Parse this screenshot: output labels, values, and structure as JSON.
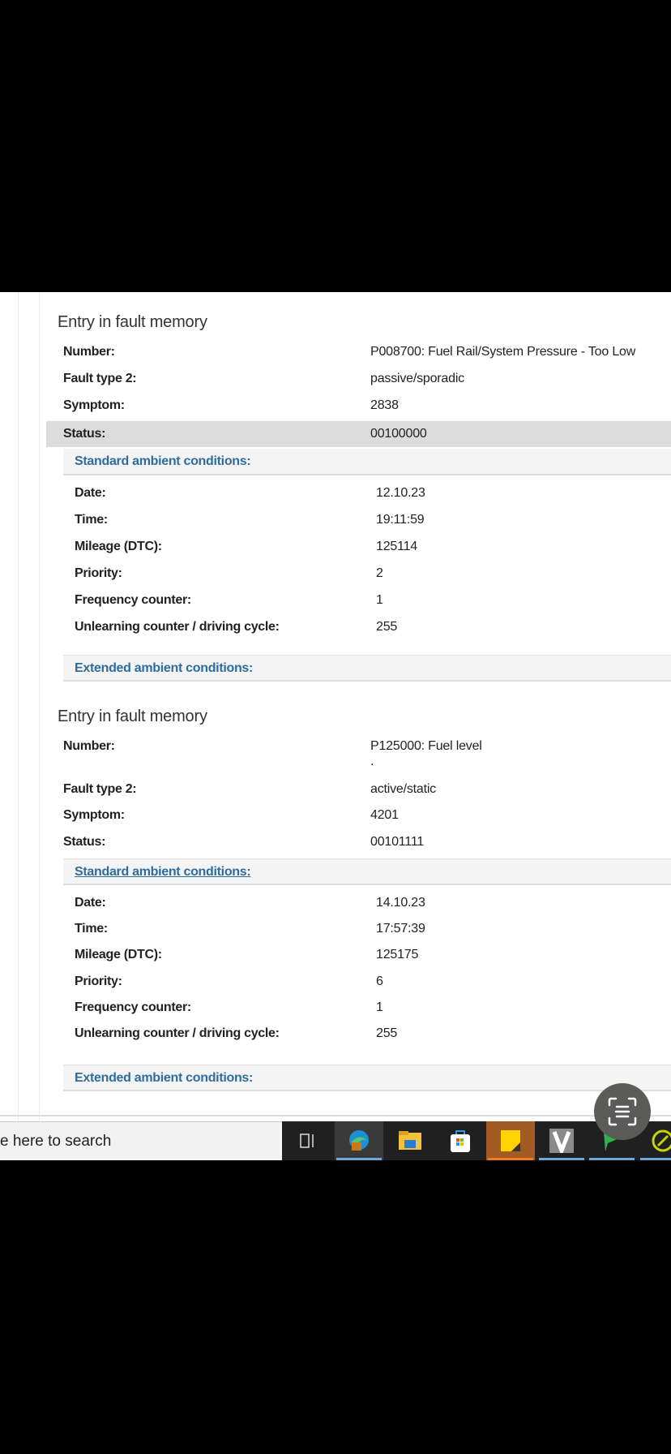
{
  "entries": [
    {
      "title": "Entry in fault memory",
      "number_label": "Number:",
      "number": "P008700:  Fuel Rail/System Pressure - Too Low",
      "fault_type_label": "Fault type 2:",
      "fault_type": "passive/sporadic",
      "symptom_label": "Symptom:",
      "symptom": "2838",
      "status_label": "Status:",
      "status": "00100000",
      "standard_label": "Standard ambient conditions:",
      "conditions": [
        {
          "label": "Date:",
          "value": "12.10.23"
        },
        {
          "label": "Time:",
          "value": "19:11:59"
        },
        {
          "label": "Mileage (DTC):",
          "value": "125114"
        },
        {
          "label": "Priority:",
          "value": "2"
        },
        {
          "label": "Frequency counter:",
          "value": "1"
        },
        {
          "label": "Unlearning counter / driving cycle:",
          "value": "255"
        }
      ],
      "extended_label": "Extended ambient conditions:"
    },
    {
      "title": "Entry in fault memory",
      "number_label": "Number:",
      "number": "P125000:  Fuel level",
      "number_extra": ".",
      "fault_type_label": "Fault type 2:",
      "fault_type": "active/static",
      "symptom_label": "Symptom:",
      "symptom": "4201",
      "status_label": "Status:",
      "status": "00101111",
      "standard_label": "Standard ambient conditions:",
      "conditions": [
        {
          "label": "Date:",
          "value": "14.10.23"
        },
        {
          "label": "Time:",
          "value": "17:57:39"
        },
        {
          "label": "Mileage (DTC):",
          "value": "125175"
        },
        {
          "label": "Priority:",
          "value": "6"
        },
        {
          "label": "Frequency counter:",
          "value": "1"
        },
        {
          "label": "Unlearning counter / driving cycle:",
          "value": "255"
        }
      ],
      "extended_label": "Extended ambient conditions:"
    }
  ],
  "taskbar": {
    "search_placeholder": "e here to search",
    "icons": [
      "task-view-icon",
      "edge-icon",
      "file-explorer-icon",
      "microsoft-store-icon",
      "sticky-notes-icon",
      "v-app-icon",
      "chat-app-icon",
      "diagnostic-app-icon"
    ]
  },
  "overlay": {
    "icon": "text-scan-lens-icon",
    "color": "#5b5c5a"
  },
  "colors": {
    "link": "#2f6c9e",
    "highlight": "#dcdcdc"
  }
}
